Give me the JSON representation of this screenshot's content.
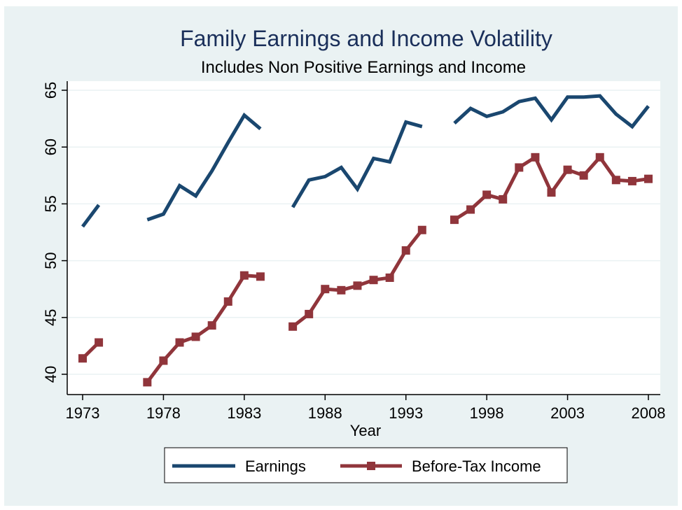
{
  "chart_data": {
    "type": "line",
    "title": "Family Earnings and Income Volatility",
    "subtitle": "Includes Non Positive Earnings and Income",
    "xlabel": "Year",
    "ylabel": "",
    "xlim": [
      1973,
      2008
    ],
    "ylim": [
      39,
      65
    ],
    "xticks": [
      1973,
      1978,
      1983,
      1988,
      1993,
      1998,
      2003,
      2008
    ],
    "yticks": [
      40,
      45,
      50,
      55,
      60,
      65
    ],
    "grid": true,
    "legend_position": "bottom",
    "colors": {
      "title": "#1a2f5a",
      "earnings": "#1a476f",
      "income": "#90353b",
      "frame": "#eaf2f3",
      "plot": "#ffffff",
      "grid": "#eaf2f3"
    },
    "series": [
      {
        "name": "Earnings",
        "marker": "none",
        "x": [
          1973,
          1974,
          1975,
          1976,
          1977,
          1978,
          1979,
          1980,
          1981,
          1982,
          1983,
          1984,
          1985,
          1986,
          1987,
          1988,
          1989,
          1990,
          1991,
          1992,
          1993,
          1994,
          1995,
          1996,
          1997,
          1998,
          1999,
          2000,
          2001,
          2002,
          2003,
          2004,
          2005,
          2006,
          2007,
          2008
        ],
        "values": [
          53.0,
          54.9,
          null,
          null,
          53.6,
          54.1,
          56.6,
          55.7,
          57.9,
          60.4,
          62.8,
          61.6,
          null,
          54.7,
          57.1,
          57.4,
          58.2,
          56.3,
          59.0,
          58.7,
          62.2,
          61.8,
          null,
          62.1,
          63.4,
          62.7,
          63.1,
          64.0,
          64.3,
          62.4,
          64.4,
          64.4,
          64.5,
          62.9,
          61.8,
          63.6
        ]
      },
      {
        "name": "Before-Tax Income",
        "marker": "square",
        "x": [
          1973,
          1974,
          1975,
          1976,
          1977,
          1978,
          1979,
          1980,
          1981,
          1982,
          1983,
          1984,
          1985,
          1986,
          1987,
          1988,
          1989,
          1990,
          1991,
          1992,
          1993,
          1994,
          1995,
          1996,
          1997,
          1998,
          1999,
          2000,
          2001,
          2002,
          2003,
          2004,
          2005,
          2006,
          2007,
          2008
        ],
        "values": [
          41.4,
          42.8,
          null,
          null,
          39.3,
          41.2,
          42.8,
          43.3,
          44.3,
          46.4,
          48.7,
          48.6,
          null,
          44.2,
          45.3,
          47.5,
          47.4,
          47.8,
          48.3,
          48.5,
          50.9,
          52.7,
          null,
          53.6,
          54.5,
          55.8,
          55.4,
          58.2,
          59.1,
          56.0,
          58.0,
          57.5,
          59.1,
          57.1,
          57.0,
          57.2
        ]
      }
    ]
  }
}
